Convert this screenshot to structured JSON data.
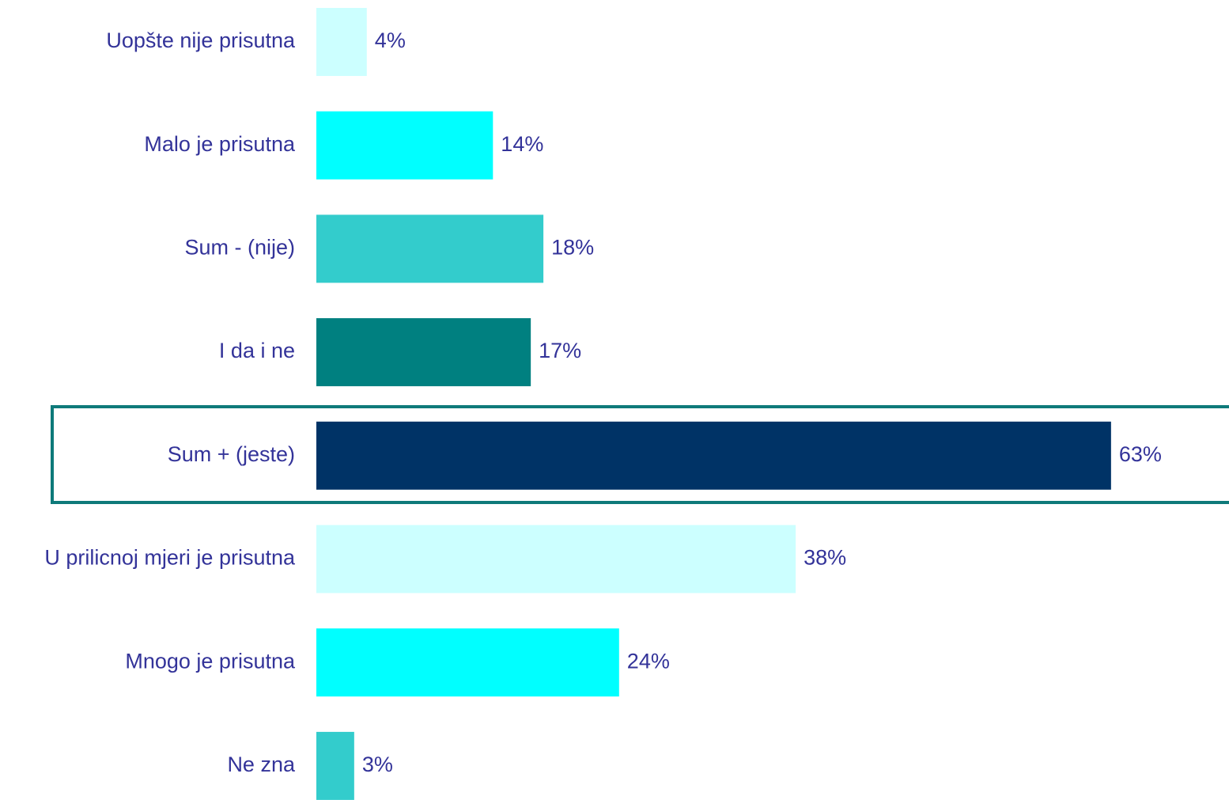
{
  "chart_data": {
    "type": "bar",
    "orientation": "horizontal",
    "categories": [
      "Uopšte nije prisutna",
      "Malo je prisutna",
      "Sum - (nije)",
      "I da i ne",
      "Sum + (jeste)",
      "U prilicnoj mjeri je prisutna",
      "Mnogo je prisutna",
      "Ne zna"
    ],
    "values": [
      4,
      14,
      18,
      17,
      63,
      38,
      24,
      3
    ],
    "value_labels": [
      "4%",
      "14%",
      "18%",
      "17%",
      "63%",
      "38%",
      "24%",
      "3%"
    ],
    "colors": [
      "#ccffff",
      "#00ffff",
      "#33cccc",
      "#008080",
      "#003366",
      "#ccffff",
      "#00ffff",
      "#33cccc"
    ]
  }
}
